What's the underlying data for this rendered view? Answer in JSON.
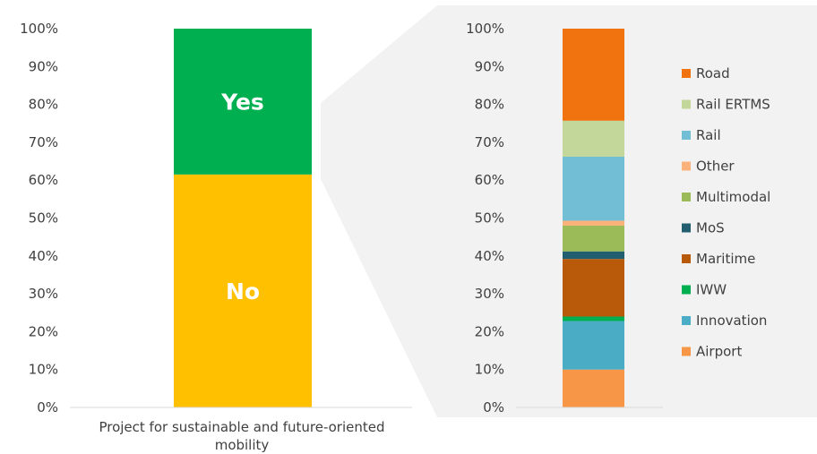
{
  "chart_data": [
    {
      "type": "bar",
      "stacked": true,
      "categories": [
        "Project for sustainable and future-oriented mobility"
      ],
      "series": [
        {
          "name": "No",
          "values": [
            61.5
          ],
          "color": "#FFC000"
        },
        {
          "name": "Yes",
          "values": [
            38.5
          ],
          "color": "#00B050"
        }
      ],
      "yticks": [
        "0%",
        "10%",
        "20%",
        "30%",
        "40%",
        "50%",
        "60%",
        "70%",
        "80%",
        "90%",
        "100%"
      ],
      "ylim": [
        0,
        100
      ],
      "grid": false
    },
    {
      "type": "bar",
      "stacked": true,
      "categories": [
        ""
      ],
      "series": [
        {
          "name": "Airport",
          "values": [
            10
          ],
          "color": "#F79646"
        },
        {
          "name": "Innovation",
          "values": [
            12.8
          ],
          "color": "#4BACC6"
        },
        {
          "name": "IWW",
          "values": [
            1.2
          ],
          "color": "#00B050"
        },
        {
          "name": "Maritime",
          "values": [
            15.2
          ],
          "color": "#B85A0A"
        },
        {
          "name": "MoS",
          "values": [
            2
          ],
          "color": "#215F70"
        },
        {
          "name": "Multimodal",
          "values": [
            6.8
          ],
          "color": "#9BBB59"
        },
        {
          "name": "Other",
          "values": [
            1.3
          ],
          "color": "#FAB27A"
        },
        {
          "name": "Rail",
          "values": [
            16.9
          ],
          "color": "#72BFD5"
        },
        {
          "name": "Rail ERTMS",
          "values": [
            9.5
          ],
          "color": "#C4D79B"
        },
        {
          "name": "Road",
          "values": [
            24.3
          ],
          "color": "#F0730F"
        }
      ],
      "yticks": [
        "0%",
        "10%",
        "20%",
        "30%",
        "40%",
        "50%",
        "60%",
        "70%",
        "80%",
        "90%",
        "100%"
      ],
      "ylim": [
        0,
        100
      ],
      "grid": false,
      "legend_position": "right"
    }
  ],
  "colors": {
    "zoom_panel": "#F2F2F2",
    "axis": "#D9D9D9",
    "text": "#404040"
  }
}
